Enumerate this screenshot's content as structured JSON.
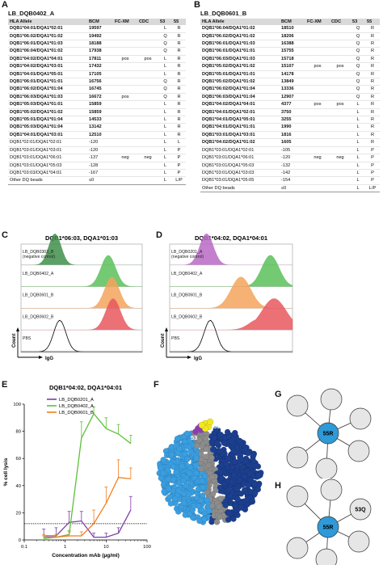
{
  "panels": {
    "A": "A",
    "B": "B",
    "C": "C",
    "D": "D",
    "E": "E",
    "F": "F",
    "G": "G",
    "H": "H"
  },
  "table_A": {
    "title": "LB_DQB0402_A",
    "headers": [
      "HLA Allele",
      "BCM",
      "FC-XM",
      "CDC",
      "53",
      "55"
    ],
    "rows": [
      {
        "allele": "DQB1*04:01/DQA1*02:01",
        "bcm": "19597",
        "fcxm": "",
        "cdc": "",
        "p53": "L",
        "p55": "R",
        "bold": true
      },
      {
        "allele": "DQB1*06:02/DQA1*01:02",
        "bcm": "19492",
        "fcxm": "",
        "cdc": "",
        "p53": "Q",
        "p55": "R",
        "bold": true
      },
      {
        "allele": "DQB1*06:01/DQA1*01:03",
        "bcm": "18188",
        "fcxm": "",
        "cdc": "",
        "p53": "Q",
        "p55": "R",
        "bold": true
      },
      {
        "allele": "DQB1*06:04/DQA1*01:02",
        "bcm": "17938",
        "fcxm": "",
        "cdc": "",
        "p53": "Q",
        "p55": "R",
        "bold": true
      },
      {
        "allele": "DQB1*04:02/DQA1*04:01",
        "bcm": "17811",
        "fcxm": "pos",
        "cdc": "pos",
        "p53": "L",
        "p55": "R",
        "bold": true
      },
      {
        "allele": "DQB1*04:02/DQA1*03:01",
        "bcm": "17432",
        "fcxm": "",
        "cdc": "",
        "p53": "L",
        "p55": "R",
        "bold": true
      },
      {
        "allele": "DQB1*04:01/DQA1*05:01",
        "bcm": "17105",
        "fcxm": "",
        "cdc": "",
        "p53": "L",
        "p55": "R",
        "bold": true
      },
      {
        "allele": "DQB1*06:01/DQA1*01:01",
        "bcm": "16756",
        "fcxm": "",
        "cdc": "",
        "p53": "Q",
        "p55": "R",
        "bold": true
      },
      {
        "allele": "DQB1*06:02/DQA1*01:04",
        "bcm": "16745",
        "fcxm": "",
        "cdc": "",
        "p53": "Q",
        "p55": "R",
        "bold": true
      },
      {
        "allele": "DQB1*06:03/DQA1*01:03",
        "bcm": "16672",
        "fcxm": "pos",
        "cdc": "",
        "p53": "Q",
        "p55": "R",
        "bold": true
      },
      {
        "allele": "DQB1*05:03/DQA1*01:01",
        "bcm": "15859",
        "fcxm": "",
        "cdc": "",
        "p53": "L",
        "p55": "R",
        "bold": true
      },
      {
        "allele": "DQB1*05:02/DQA1*01:02",
        "bcm": "15859",
        "fcxm": "",
        "cdc": "",
        "p53": "L",
        "p55": "R",
        "bold": true
      },
      {
        "allele": "DQB1*05:01/DQA1*01:04",
        "bcm": "14533",
        "fcxm": "",
        "cdc": "",
        "p53": "L",
        "p55": "R",
        "bold": true
      },
      {
        "allele": "DQB1*05:03/DQA1*01:04",
        "bcm": "13142",
        "fcxm": "",
        "cdc": "",
        "p53": "L",
        "p55": "R",
        "bold": true
      },
      {
        "allele": "DQB1*04:01/DQA1*03:01",
        "bcm": "12510",
        "fcxm": "",
        "cdc": "",
        "p53": "L",
        "p55": "R",
        "bold": true
      },
      {
        "allele": "DQB1*02:01/DQA1*02:01",
        "bcm": "-120",
        "fcxm": "",
        "cdc": "",
        "p53": "L",
        "p55": "L",
        "bold": false
      },
      {
        "allele": "DQB1*03:01/DQA1*03:01",
        "bcm": "-120",
        "fcxm": "",
        "cdc": "",
        "p53": "L",
        "p55": "P",
        "bold": false
      },
      {
        "allele": "DQB1*03:01/DQA1*06:01",
        "bcm": "-137",
        "fcxm": "neg",
        "cdc": "neg",
        "p53": "L",
        "p55": "P",
        "bold": false
      },
      {
        "allele": "DQB1*03:01/DQA1*05:03",
        "bcm": "-128",
        "fcxm": "",
        "cdc": "",
        "p53": "L",
        "p55": "P",
        "bold": false
      },
      {
        "allele": "DQB1*03:03/DQA1*04:01",
        "bcm": "-167",
        "fcxm": "",
        "cdc": "",
        "p53": "L",
        "p55": "P",
        "bold": false
      }
    ],
    "footer": {
      "allele": "Other DQ beads",
      "bcm": "≤0",
      "p53": "L",
      "p55": "L/P"
    }
  },
  "table_B": {
    "title": "LB_DQB0601_B",
    "headers": [
      "HLA Allele",
      "BCM",
      "FC-XM",
      "CDC",
      "53",
      "55"
    ],
    "rows": [
      {
        "allele": "DQB1*06:04/DQA1*01:02",
        "bcm": "18510",
        "fcxm": "",
        "cdc": "",
        "p53": "Q",
        "p55": "R",
        "bold": true
      },
      {
        "allele": "DQB1*06:02/DQA1*01:02",
        "bcm": "18206",
        "fcxm": "",
        "cdc": "",
        "p53": "Q",
        "p55": "R",
        "bold": true
      },
      {
        "allele": "DQB1*06:01/DQA1*01:03",
        "bcm": "16388",
        "fcxm": "",
        "cdc": "",
        "p53": "Q",
        "p55": "R",
        "bold": true
      },
      {
        "allele": "DQB1*06:01/DQA1*01:01",
        "bcm": "15755",
        "fcxm": "",
        "cdc": "",
        "p53": "Q",
        "p55": "R",
        "bold": true
      },
      {
        "allele": "DQB1*06:03/DQA1*01:03",
        "bcm": "15718",
        "fcxm": "",
        "cdc": "",
        "p53": "Q",
        "p55": "R",
        "bold": true
      },
      {
        "allele": "DQB1*05:02/DQA1*01:02",
        "bcm": "15107",
        "fcxm": "pos",
        "cdc": "pos",
        "p53": "Q",
        "p55": "R",
        "bold": true
      },
      {
        "allele": "DQB1*05:01/DQA1*01:01",
        "bcm": "14178",
        "fcxm": "",
        "cdc": "",
        "p53": "Q",
        "p55": "R",
        "bold": true
      },
      {
        "allele": "DQB1*05:02/DQA1*01:02",
        "bcm": "13849",
        "fcxm": "",
        "cdc": "",
        "p53": "Q",
        "p55": "R",
        "bold": true
      },
      {
        "allele": "DQB1*06:02/DQA1*01:04",
        "bcm": "13336",
        "fcxm": "",
        "cdc": "",
        "p53": "Q",
        "p55": "R",
        "bold": true
      },
      {
        "allele": "DQB1*06:03/DQA1*01:04",
        "bcm": "12907",
        "fcxm": "",
        "cdc": "",
        "p53": "Q",
        "p55": "R",
        "bold": true
      },
      {
        "allele": "DQB1*04:02/DQA1*04:01",
        "bcm": "4377",
        "fcxm": "pos",
        "cdc": "pos",
        "p53": "L",
        "p55": "R",
        "bold": true
      },
      {
        "allele": "DQB1*04:01/DQA1*02:01",
        "bcm": "3750",
        "fcxm": "",
        "cdc": "",
        "p53": "L",
        "p55": "R",
        "bold": true
      },
      {
        "allele": "DQB1*04:01/DQA1*05:01",
        "bcm": "3255",
        "fcxm": "",
        "cdc": "",
        "p53": "L",
        "p55": "R",
        "bold": true
      },
      {
        "allele": "DQB1*04:01/DQA1*01:01",
        "bcm": "1990",
        "fcxm": "",
        "cdc": "",
        "p53": "L",
        "p55": "R",
        "bold": true
      },
      {
        "allele": "DQB1*03:01/DQA1*03:01",
        "bcm": "1816",
        "fcxm": "",
        "cdc": "",
        "p53": "L",
        "p55": "R",
        "bold": true
      },
      {
        "allele": "DQB1*04:02/DQA1*01:02",
        "bcm": "1605",
        "fcxm": "",
        "cdc": "",
        "p53": "L",
        "p55": "R",
        "bold": true
      },
      {
        "allele": "DQB1*03:01/DQA1*02:01",
        "bcm": "-105",
        "fcxm": "",
        "cdc": "",
        "p53": "L",
        "p55": "P",
        "bold": false
      },
      {
        "allele": "DQB1*03:01/DQA1*06:01",
        "bcm": "-120",
        "fcxm": "neg",
        "cdc": "neg",
        "p53": "L",
        "p55": "P",
        "bold": false
      },
      {
        "allele": "DQB1*03:01/DQA1*05:03",
        "bcm": "-132",
        "fcxm": "",
        "cdc": "",
        "p53": "L",
        "p55": "P",
        "bold": false
      },
      {
        "allele": "DQB1*03:01/DQA1*03:03",
        "bcm": "-142",
        "fcxm": "",
        "cdc": "",
        "p53": "L",
        "p55": "P",
        "bold": false
      },
      {
        "allele": "DQB1*03:01/DQA1*05:05",
        "bcm": "-154",
        "fcxm": "",
        "cdc": "",
        "p53": "L",
        "p55": "P",
        "bold": false
      }
    ],
    "footer": {
      "allele": "Other DQ beads",
      "bcm": "≤0",
      "p53": "L",
      "p55": "L/P"
    }
  },
  "panel_C": {
    "title": "DQB1*06:03, DQA1*01:03",
    "ylabel": "Count",
    "xlabel": "IgG",
    "tracks": [
      {
        "label": "LB_DQB0303_B",
        "sublabel": "(negative control)",
        "color": "#3f8f4a",
        "peak": 0.28,
        "width": 0.05
      },
      {
        "label": "LB_DQB0402_A",
        "sublabel": "",
        "color": "#5cc05a",
        "peak": 0.72,
        "width": 0.06
      },
      {
        "label": "LB_DQB0601_B",
        "sublabel": "",
        "color": "#f5a35c",
        "peak": 0.75,
        "width": 0.06
      },
      {
        "label": "LB_DQB0602_B",
        "sublabel": "",
        "color": "#e8585e",
        "peak": 0.76,
        "width": 0.06
      },
      {
        "label": "PBS",
        "sublabel": "",
        "color": "none",
        "peak": 0.32,
        "width": 0.05
      }
    ]
  },
  "panel_D": {
    "title": "DQB1*04:02, DQA1*04:01",
    "ylabel": "Count",
    "xlabel": "IgG",
    "tracks": [
      {
        "label": "LB_DQB0201_A",
        "sublabel": "(negative control)",
        "color": "#b86ac4",
        "peak": 0.3,
        "width": 0.055
      },
      {
        "label": "LB_DQB0402_A",
        "sublabel": "",
        "color": "#5cc05a",
        "peak": 0.82,
        "width": 0.07
      },
      {
        "label": "LB_DQB0601_B",
        "sublabel": "",
        "color": "#f5a35c",
        "peak": 0.58,
        "width": 0.08
      },
      {
        "label": "LB_DQB0602_B",
        "sublabel": "",
        "color": "#e8585e",
        "peak": 0.85,
        "width": 0.1
      },
      {
        "label": "PBS",
        "sublabel": "",
        "color": "none",
        "peak": 0.33,
        "width": 0.05
      }
    ]
  },
  "chart_data": {
    "type": "line",
    "title": "DQB1*04:02, DQA1*04:01",
    "xlabel": "Concentration mAb (µg/ml)",
    "ylabel": "% cell lysis",
    "xscale": "log",
    "xlim": [
      0.1,
      100
    ],
    "ylim": [
      0,
      100
    ],
    "xticks": [
      "0.1",
      "1",
      "10",
      "100"
    ],
    "yticks": [
      "0",
      "20",
      "40",
      "60",
      "80",
      "100"
    ],
    "threshold": 12,
    "series": [
      {
        "name": "LB_DQB0201_A",
        "color": "#7b3fa0",
        "x": [
          0.3,
          0.6,
          1.25,
          2.5,
          5,
          10,
          20,
          40
        ],
        "y": [
          3,
          3,
          13,
          14,
          2,
          2,
          5,
          22
        ],
        "err": [
          5,
          6,
          8,
          7,
          3,
          3,
          4,
          10
        ]
      },
      {
        "name": "LB_DQB0402_A",
        "color": "#5fbf3c",
        "x": [
          0.3,
          0.6,
          1.25,
          2.5,
          5,
          10,
          20,
          40
        ],
        "y": [
          1,
          2,
          4,
          75,
          93,
          82,
          78,
          71
        ],
        "err": [
          2,
          2,
          3,
          12,
          5,
          8,
          7,
          6
        ]
      },
      {
        "name": "LB_DQB0601_B",
        "color": "#f07f1f",
        "x": [
          0.3,
          0.6,
          1.25,
          2.5,
          5,
          10,
          20,
          40
        ],
        "y": [
          2,
          2,
          3,
          3,
          12,
          27,
          46,
          45
        ],
        "err": [
          2,
          2,
          3,
          3,
          10,
          12,
          13,
          8
        ]
      }
    ]
  },
  "panel_F": {
    "label53": "53",
    "label55": "55"
  },
  "panel_G": {
    "center": "55R"
  },
  "panel_H": {
    "center": "55R",
    "label53": "53Q"
  },
  "colors": {
    "dark_blue": "#1c3f8f",
    "light_blue": "#3a9ee0",
    "grey": "#8d8d8d",
    "yellow": "#f2e820",
    "purple": "#8a3fb0",
    "node_blue": "#2f9ad8",
    "node_grey": "#e6e6e6"
  }
}
